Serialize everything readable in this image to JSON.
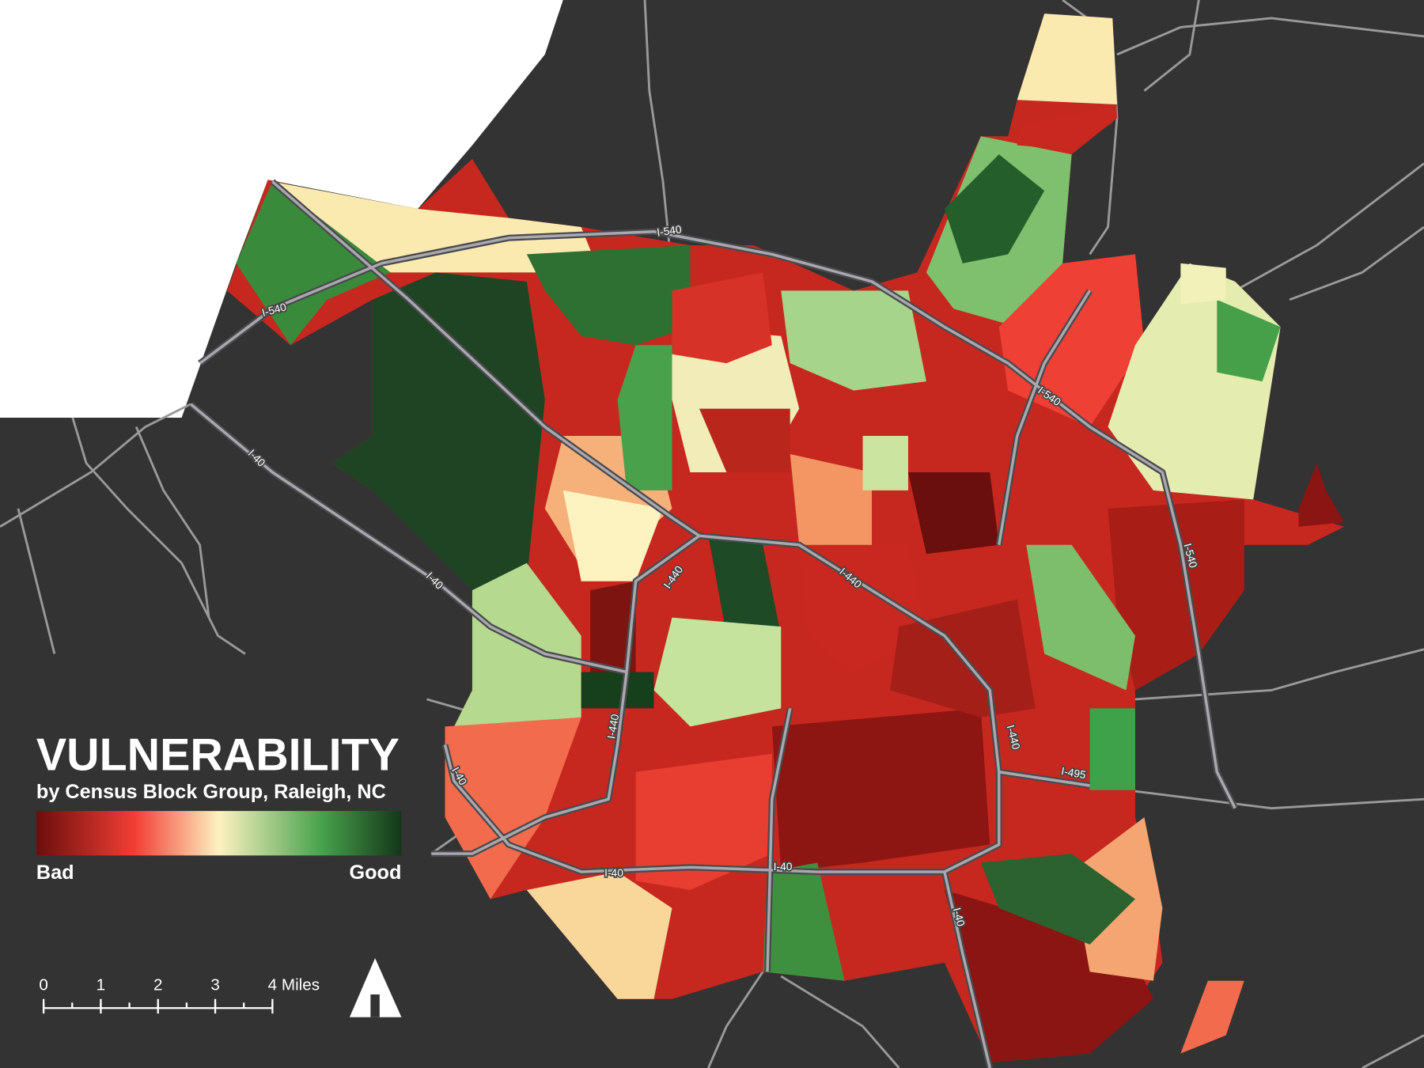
{
  "title": "VULNERABILITY",
  "subtitle": "by Census Block Group, Raleigh, NC",
  "legend": {
    "low_label": "Bad",
    "high_label": "Good"
  },
  "scale_bar": {
    "ticks": [
      0,
      1,
      2,
      3,
      {
        "value": 4,
        "label": "4 Miles"
      }
    ]
  },
  "road_labels": [
    "I-540",
    "I-540",
    "I-540",
    "I-540",
    "I-40",
    "I-40",
    "I-40",
    "I-40",
    "I-40",
    "I-40",
    "I-440",
    "I-440",
    "I-440",
    "I-440",
    "I-495"
  ]
}
